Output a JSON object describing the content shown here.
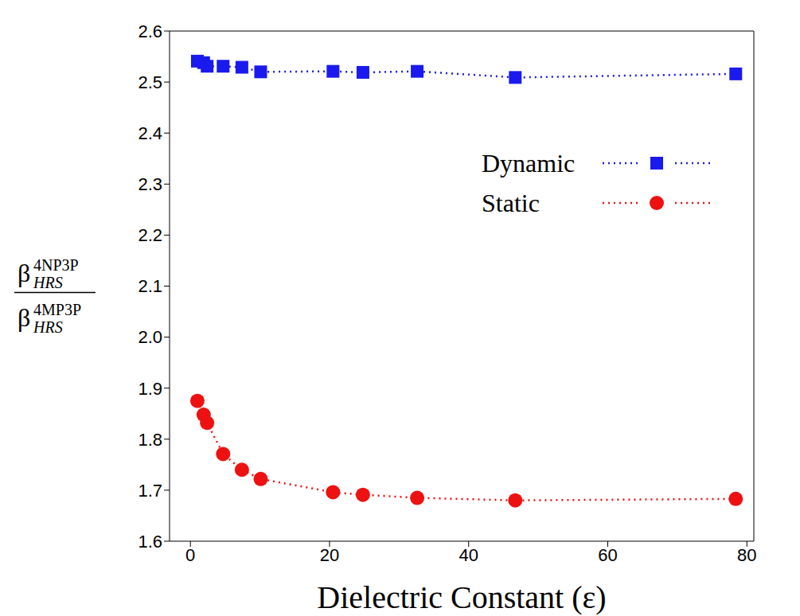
{
  "chart_data": {
    "type": "scatter",
    "xlabel": "Dielectric Constant (ε)",
    "ylabel": {
      "numerator": {
        "base": "β",
        "sub": "HRS",
        "sup": "4NP3P"
      },
      "denominator": {
        "base": "β",
        "sub": "HRS",
        "sup": "4MP3P"
      }
    },
    "x": [
      1.0,
      1.9,
      2.4,
      4.7,
      7.4,
      10.1,
      20.5,
      24.8,
      32.6,
      46.7,
      78.4
    ],
    "series": [
      {
        "name": "Dynamic",
        "color": "#1a1aee",
        "marker": "square",
        "line_style": "dotted",
        "values": [
          2.541,
          2.538,
          2.531,
          2.531,
          2.529,
          2.52,
          2.521,
          2.519,
          2.521,
          2.509,
          2.516
        ]
      },
      {
        "name": "Static",
        "color": "#ee1111",
        "marker": "circle",
        "line_style": "dotted",
        "values": [
          1.875,
          1.848,
          1.832,
          1.771,
          1.74,
          1.722,
          1.696,
          1.691,
          1.685,
          1.68,
          1.683
        ]
      }
    ],
    "xlim": [
      -3,
      81
    ],
    "xticks": [
      0,
      20,
      40,
      60,
      80
    ],
    "ylim": [
      1.6,
      2.6
    ],
    "yticks": [
      1.6,
      1.7,
      1.8,
      1.9,
      {
        "value": 2,
        "label": "2.0"
      },
      2.1,
      2.2,
      2.3,
      2.4,
      2.5,
      2.6
    ],
    "legend": "right",
    "grid": false
  }
}
